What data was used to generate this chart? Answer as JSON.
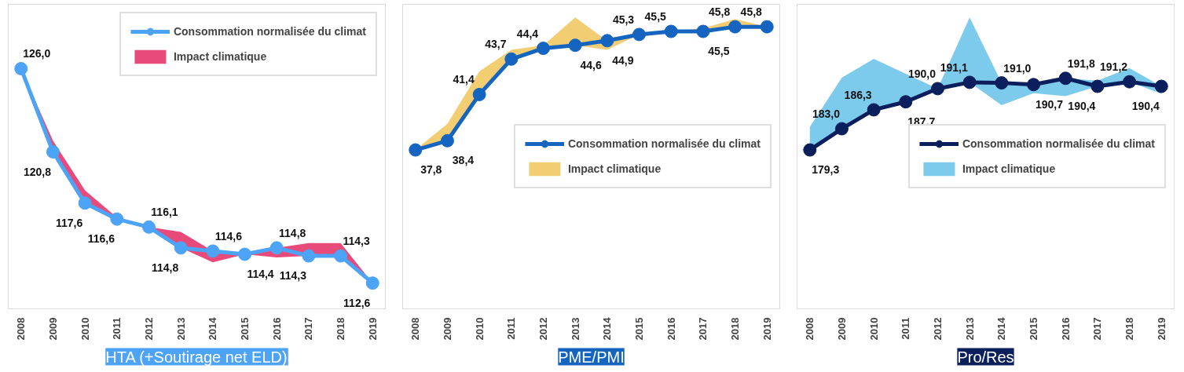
{
  "chart_data": [
    {
      "type": "line",
      "title": "HTA (+Soutirage net ELD)",
      "categories": [
        "2008",
        "2009",
        "2010",
        "2011",
        "2012",
        "2013",
        "2014",
        "2015",
        "2016",
        "2017",
        "2018",
        "2019"
      ],
      "legend": "top right",
      "series": [
        {
          "name": "Consommation normalisée du climat",
          "color": "#4da3f5",
          "marker": "circle",
          "values": [
            126.0,
            120.8,
            117.6,
            116.6,
            116.1,
            114.8,
            114.6,
            114.4,
            114.8,
            114.3,
            114.3,
            112.6
          ],
          "value_labels": [
            "126,0",
            "120,8",
            "117,6",
            "116,6",
            "116,1",
            "114,8",
            "114,6",
            "114,4",
            "114,8",
            "114,3",
            "114,3",
            "112,6"
          ],
          "lower": [
            126.0,
            120.8,
            117.6,
            116.6,
            116.1,
            114.8,
            113.9,
            114.4,
            114.2,
            114.3,
            114.3,
            112.6
          ],
          "upper": [
            126.0,
            121.5,
            118.4,
            116.7,
            116.1,
            115.8,
            114.6,
            114.4,
            114.8,
            115.1,
            115.1,
            112.6
          ]
        },
        {
          "name": "Impact climatique",
          "type": "area",
          "color": "#e84a7a",
          "values": [
            null,
            null,
            null,
            null,
            null,
            null,
            null,
            null,
            null,
            null,
            null,
            null
          ]
        }
      ]
    },
    {
      "type": "line",
      "title": "PME/PMI",
      "categories": [
        "2008",
        "2009",
        "2010",
        "2011",
        "2012",
        "2013",
        "2014",
        "2015",
        "2016",
        "2017",
        "2018",
        "2019"
      ],
      "legend": "right",
      "series": [
        {
          "name": "Consommation normalisée du climat",
          "color": "#1565c0",
          "marker": "circle",
          "values": [
            37.8,
            38.4,
            41.4,
            43.7,
            44.4,
            44.6,
            44.9,
            45.3,
            45.5,
            45.5,
            45.8,
            45.8
          ],
          "value_labels": [
            "37,8",
            "38,4",
            "41,4",
            "43,7",
            "44,4",
            "44,6",
            "44,9",
            "45,3",
            "45,5",
            "45,5",
            "45,8",
            "45,8"
          ],
          "lower": [
            37.8,
            38.4,
            41.4,
            43.7,
            44.4,
            44.6,
            44.3,
            45.3,
            45.5,
            45.5,
            45.8,
            45.8
          ],
          "upper": [
            37.8,
            39.5,
            42.9,
            44.3,
            44.6,
            46.4,
            44.9,
            45.3,
            45.5,
            45.7,
            46.3,
            45.8
          ]
        },
        {
          "name": "Impact climatique",
          "type": "area",
          "color": "#f2cd72",
          "values": [
            null,
            null,
            null,
            null,
            null,
            null,
            null,
            null,
            null,
            null,
            null,
            null
          ]
        }
      ]
    },
    {
      "type": "line",
      "title": "Pro/Res",
      "categories": [
        "2008",
        "2009",
        "2010",
        "2011",
        "2012",
        "2013",
        "2014",
        "2015",
        "2016",
        "2017",
        "2018",
        "2019"
      ],
      "legend": "right",
      "series": [
        {
          "name": "Consommation normalisée du climat",
          "color": "#0b1f5c",
          "marker": "circle",
          "values": [
            179.3,
            183.0,
            186.3,
            187.7,
            190.0,
            191.1,
            191.0,
            190.7,
            191.8,
            190.4,
            191.2,
            190.4
          ],
          "value_labels": [
            "179,3",
            "183,0",
            "186,3",
            "187,7",
            "190,0",
            "191,1",
            "191,0",
            "190,7",
            "191,8",
            "190,4",
            "191,2",
            "190,4"
          ],
          "lower": [
            179.3,
            183.0,
            186.3,
            187.7,
            190.0,
            191.1,
            187.1,
            189.2,
            188.7,
            190.4,
            191.2,
            189.1
          ],
          "upper": [
            183.3,
            191.9,
            195.2,
            192.6,
            190.0,
            202.4,
            191.0,
            190.7,
            191.8,
            191.4,
            193.6,
            190.4
          ]
        },
        {
          "name": "Impact climatique",
          "type": "area",
          "color": "#7ccbec",
          "values": [
            null,
            null,
            null,
            null,
            null,
            null,
            null,
            null,
            null,
            null,
            null,
            null
          ]
        }
      ]
    }
  ]
}
